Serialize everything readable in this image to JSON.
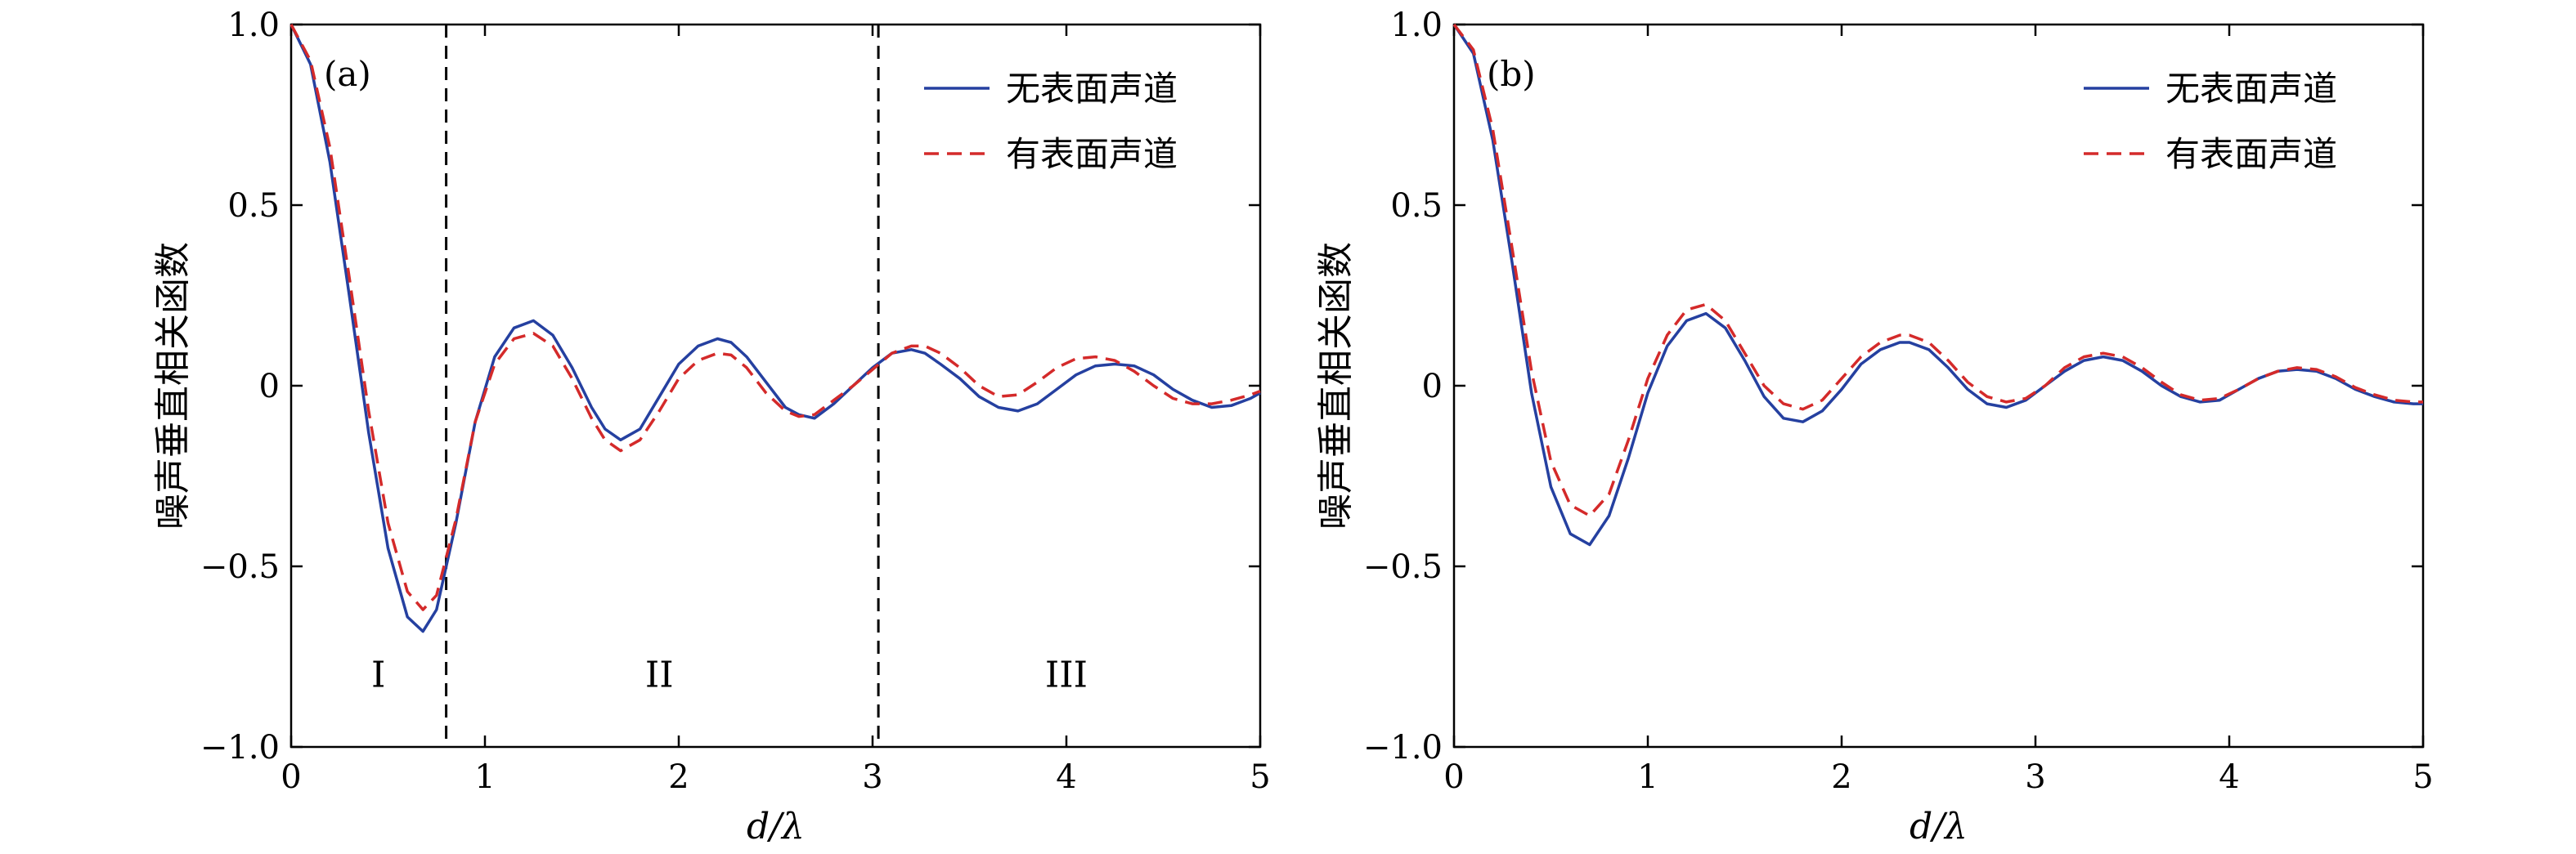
{
  "chart_data": [
    {
      "type": "line",
      "panel_label": "(a)",
      "xlabel": "d/λ",
      "ylabel": "噪声垂直相关函数",
      "xlim": [
        0,
        5
      ],
      "ylim": [
        -1.0,
        1.0
      ],
      "xticks": [
        0,
        1,
        2,
        3,
        4,
        5
      ],
      "xtick_labels": [
        "0",
        "1",
        "2",
        "3",
        "4",
        "5"
      ],
      "yticks": [
        -1.0,
        -0.5,
        0,
        0.5,
        1.0
      ],
      "ytick_labels": [
        "−1.0",
        "−0.5",
        "0",
        "0.5",
        "1.0"
      ],
      "legend_position": "top-right",
      "grid": false,
      "vlines": [
        0.8,
        3.03
      ],
      "regions": [
        {
          "label": "I",
          "x": 0.45,
          "y": -0.8
        },
        {
          "label": "II",
          "x": 1.9,
          "y": -0.8
        },
        {
          "label": "III",
          "x": 4.0,
          "y": -0.8
        }
      ],
      "series": [
        {
          "name": "无表面声道",
          "color": "#2540a0",
          "dash": "solid",
          "x": [
            0,
            0.1,
            0.2,
            0.3,
            0.4,
            0.5,
            0.6,
            0.68,
            0.75,
            0.85,
            0.95,
            1.05,
            1.15,
            1.25,
            1.35,
            1.45,
            1.55,
            1.62,
            1.7,
            1.8,
            1.9,
            2.0,
            2.1,
            2.2,
            2.27,
            2.35,
            2.45,
            2.55,
            2.62,
            2.7,
            2.8,
            2.9,
            3.0,
            3.1,
            3.2,
            3.27,
            3.35,
            3.45,
            3.55,
            3.65,
            3.75,
            3.85,
            3.95,
            4.05,
            4.15,
            4.25,
            4.35,
            4.45,
            4.55,
            4.65,
            4.75,
            4.85,
            4.95,
            5.0
          ],
          "y": [
            1.0,
            0.89,
            0.62,
            0.25,
            -0.13,
            -0.45,
            -0.64,
            -0.68,
            -0.62,
            -0.38,
            -0.1,
            0.08,
            0.16,
            0.18,
            0.14,
            0.05,
            -0.06,
            -0.12,
            -0.15,
            -0.12,
            -0.03,
            0.06,
            0.11,
            0.13,
            0.12,
            0.08,
            0.01,
            -0.06,
            -0.08,
            -0.09,
            -0.05,
            0.0,
            0.05,
            0.09,
            0.1,
            0.09,
            0.06,
            0.02,
            -0.03,
            -0.06,
            -0.07,
            -0.05,
            -0.01,
            0.03,
            0.055,
            0.06,
            0.055,
            0.03,
            -0.01,
            -0.04,
            -0.06,
            -0.055,
            -0.035,
            -0.02
          ]
        },
        {
          "name": "有表面声道",
          "color": "#d42a2a",
          "dash": "dashed",
          "x": [
            0,
            0.1,
            0.2,
            0.3,
            0.4,
            0.5,
            0.6,
            0.68,
            0.75,
            0.85,
            0.95,
            1.05,
            1.15,
            1.25,
            1.35,
            1.45,
            1.55,
            1.62,
            1.7,
            1.8,
            1.9,
            2.0,
            2.1,
            2.2,
            2.27,
            2.35,
            2.45,
            2.55,
            2.62,
            2.7,
            2.8,
            2.9,
            3.0,
            3.1,
            3.2,
            3.27,
            3.35,
            3.45,
            3.55,
            3.65,
            3.75,
            3.85,
            3.95,
            4.05,
            4.15,
            4.25,
            4.35,
            4.45,
            4.55,
            4.65,
            4.75,
            4.85,
            4.95,
            5.0
          ],
          "y": [
            1.0,
            0.9,
            0.66,
            0.3,
            -0.07,
            -0.38,
            -0.57,
            -0.62,
            -0.58,
            -0.37,
            -0.1,
            0.06,
            0.13,
            0.145,
            0.11,
            0.02,
            -0.09,
            -0.15,
            -0.18,
            -0.15,
            -0.07,
            0.02,
            0.07,
            0.09,
            0.085,
            0.05,
            -0.02,
            -0.07,
            -0.085,
            -0.08,
            -0.04,
            0.0,
            0.045,
            0.09,
            0.11,
            0.11,
            0.09,
            0.05,
            0.0,
            -0.03,
            -0.025,
            0.01,
            0.05,
            0.075,
            0.08,
            0.07,
            0.04,
            0.0,
            -0.035,
            -0.05,
            -0.05,
            -0.04,
            -0.025,
            -0.015
          ]
        }
      ]
    },
    {
      "type": "line",
      "panel_label": "(b)",
      "xlabel": "d/λ",
      "ylabel": "噪声垂直相关函数",
      "xlim": [
        0,
        5
      ],
      "ylim": [
        -1.0,
        1.0
      ],
      "xticks": [
        0,
        1,
        2,
        3,
        4,
        5
      ],
      "xtick_labels": [
        "0",
        "1",
        "2",
        "3",
        "4",
        "5"
      ],
      "yticks": [
        -1.0,
        -0.5,
        0,
        0.5,
        1.0
      ],
      "ytick_labels": [
        "−1.0",
        "−0.5",
        "0",
        "0.5",
        "1.0"
      ],
      "legend_position": "top-right",
      "grid": false,
      "vlines": [],
      "regions": [],
      "series": [
        {
          "name": "无表面声道",
          "color": "#2540a0",
          "dash": "solid",
          "x": [
            0,
            0.1,
            0.2,
            0.3,
            0.4,
            0.5,
            0.6,
            0.7,
            0.8,
            0.9,
            1.0,
            1.1,
            1.2,
            1.3,
            1.4,
            1.5,
            1.6,
            1.7,
            1.8,
            1.9,
            2.0,
            2.1,
            2.2,
            2.3,
            2.35,
            2.45,
            2.55,
            2.65,
            2.75,
            2.85,
            2.95,
            3.05,
            3.15,
            3.25,
            3.35,
            3.45,
            3.55,
            3.65,
            3.75,
            3.85,
            3.95,
            4.05,
            4.15,
            4.25,
            4.35,
            4.45,
            4.55,
            4.65,
            4.75,
            4.85,
            4.95,
            5.0
          ],
          "y": [
            1.0,
            0.92,
            0.68,
            0.34,
            -0.02,
            -0.28,
            -0.41,
            -0.44,
            -0.36,
            -0.2,
            -0.02,
            0.11,
            0.18,
            0.2,
            0.16,
            0.07,
            -0.03,
            -0.09,
            -0.1,
            -0.07,
            -0.01,
            0.06,
            0.1,
            0.12,
            0.12,
            0.1,
            0.05,
            -0.01,
            -0.05,
            -0.06,
            -0.04,
            0.0,
            0.04,
            0.07,
            0.08,
            0.07,
            0.04,
            0.0,
            -0.03,
            -0.045,
            -0.04,
            -0.01,
            0.02,
            0.04,
            0.045,
            0.04,
            0.02,
            -0.01,
            -0.03,
            -0.045,
            -0.05,
            -0.05
          ]
        },
        {
          "name": "有表面声道",
          "color": "#d42a2a",
          "dash": "dashed",
          "x": [
            0,
            0.1,
            0.2,
            0.3,
            0.4,
            0.5,
            0.6,
            0.7,
            0.8,
            0.9,
            1.0,
            1.1,
            1.2,
            1.3,
            1.4,
            1.5,
            1.6,
            1.7,
            1.8,
            1.9,
            2.0,
            2.1,
            2.2,
            2.3,
            2.35,
            2.45,
            2.55,
            2.65,
            2.75,
            2.85,
            2.95,
            3.05,
            3.15,
            3.25,
            3.35,
            3.45,
            3.55,
            3.65,
            3.75,
            3.85,
            3.95,
            4.05,
            4.15,
            4.25,
            4.35,
            4.45,
            4.55,
            4.65,
            4.75,
            4.85,
            4.95,
            5.0
          ],
          "y": [
            1.0,
            0.93,
            0.71,
            0.38,
            0.04,
            -0.21,
            -0.33,
            -0.36,
            -0.3,
            -0.15,
            0.02,
            0.14,
            0.21,
            0.225,
            0.18,
            0.09,
            0.0,
            -0.05,
            -0.065,
            -0.04,
            0.02,
            0.08,
            0.12,
            0.14,
            0.14,
            0.12,
            0.07,
            0.01,
            -0.03,
            -0.045,
            -0.035,
            0.0,
            0.05,
            0.08,
            0.09,
            0.08,
            0.05,
            0.01,
            -0.025,
            -0.04,
            -0.035,
            -0.01,
            0.02,
            0.04,
            0.05,
            0.045,
            0.025,
            -0.005,
            -0.025,
            -0.04,
            -0.045,
            -0.045
          ]
        }
      ]
    }
  ]
}
